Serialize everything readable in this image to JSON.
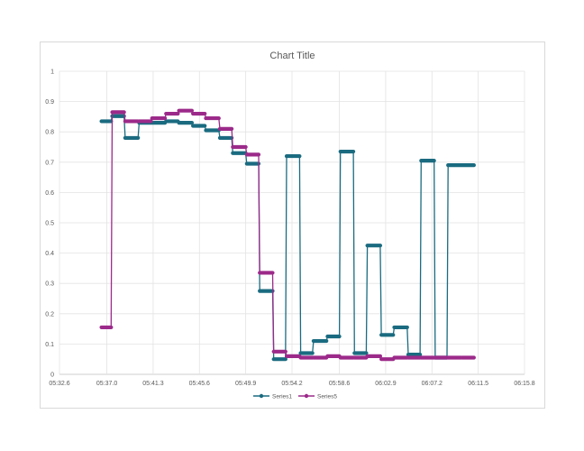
{
  "chart_data": {
    "type": "line",
    "title": "Chart Title",
    "xlabel": "",
    "ylabel": "",
    "x_unit": "mm:ss.s",
    "xlim": [
      "05:32.6",
      "06:15.8"
    ],
    "ylim": [
      0,
      1
    ],
    "x_ticks": [
      "05:32.6",
      "05:37.0",
      "05:41.3",
      "05:45.6",
      "05:49.9",
      "05:54.2",
      "05:58.6",
      "06:02.9",
      "06:07.2",
      "06:11.5",
      "06:15.8"
    ],
    "y_ticks": [
      "0",
      "0.1",
      "0.2",
      "0.3",
      "0.4",
      "0.5",
      "0.6",
      "0.7",
      "0.8",
      "0.9",
      "1"
    ],
    "grid": true,
    "legend": "bottom",
    "series": [
      {
        "name": "Series1",
        "color": "#1a6b80",
        "x": [
          "05:36.5",
          "05:37.4",
          "05:37.5",
          "05:38.6",
          "05:38.7",
          "05:39.9",
          "05:40.0",
          "05:41.1",
          "05:41.2",
          "05:42.4",
          "05:42.5",
          "05:43.6",
          "05:43.7",
          "05:44.9",
          "05:45.0",
          "05:46.1",
          "05:46.2",
          "05:47.4",
          "05:47.5",
          "05:48.6",
          "05:48.7",
          "05:49.9",
          "05:50.0",
          "05:51.1",
          "05:51.2",
          "05:52.4",
          "05:52.5",
          "05:53.6",
          "05:53.7",
          "05:54.9",
          "05:55.0",
          "05:56.1",
          "05:56.2",
          "05:57.4",
          "05:57.5",
          "05:58.6",
          "05:58.7",
          "05:59.9",
          "06:00.0",
          "06:01.1",
          "06:01.2",
          "06:02.4",
          "06:02.5",
          "06:03.6",
          "06:03.7",
          "06:04.9",
          "06:05.0",
          "06:06.1",
          "06:06.2",
          "06:07.4",
          "06:07.5",
          "06:08.6",
          "06:08.7",
          "06:09.9",
          "06:10.0",
          "06:11.1"
        ],
        "y": [
          0.835,
          0.835,
          0.852,
          0.852,
          0.78,
          0.78,
          0.83,
          0.83,
          0.83,
          0.83,
          0.835,
          0.835,
          0.83,
          0.83,
          0.82,
          0.82,
          0.805,
          0.805,
          0.78,
          0.78,
          0.73,
          0.73,
          0.695,
          0.695,
          0.275,
          0.275,
          0.05,
          0.05,
          0.72,
          0.72,
          0.07,
          0.07,
          0.11,
          0.11,
          0.125,
          0.125,
          0.735,
          0.735,
          0.07,
          0.07,
          0.425,
          0.425,
          0.13,
          0.13,
          0.155,
          0.155,
          0.065,
          0.065,
          0.705,
          0.705,
          0.055,
          0.055,
          0.69,
          0.69,
          0.69,
          0.69
        ]
      },
      {
        "name": "Series5",
        "color": "#9c2a8a",
        "x": [
          "05:36.5",
          "05:37.4",
          "05:37.5",
          "05:38.6",
          "05:38.7",
          "05:39.9",
          "05:40.0",
          "05:41.1",
          "05:41.2",
          "05:42.4",
          "05:42.5",
          "05:43.6",
          "05:43.7",
          "05:44.9",
          "05:45.0",
          "05:46.1",
          "05:46.2",
          "05:47.4",
          "05:47.5",
          "05:48.6",
          "05:48.7",
          "05:49.9",
          "05:50.0",
          "05:51.1",
          "05:51.2",
          "05:52.4",
          "05:52.5",
          "05:53.6",
          "05:53.7",
          "05:54.9",
          "05:55.0",
          "05:56.1",
          "05:56.2",
          "05:57.4",
          "05:57.5",
          "05:58.6",
          "05:58.7",
          "05:59.9",
          "06:00.0",
          "06:01.1",
          "06:01.2",
          "06:02.4",
          "06:02.5",
          "06:03.6",
          "06:03.7",
          "06:04.9",
          "06:05.0",
          "06:06.1",
          "06:06.2",
          "06:07.4",
          "06:07.5",
          "06:08.6",
          "06:08.7",
          "06:09.9",
          "06:10.0",
          "06:11.1"
        ],
        "y": [
          0.155,
          0.155,
          0.865,
          0.865,
          0.835,
          0.835,
          0.835,
          0.835,
          0.845,
          0.845,
          0.86,
          0.86,
          0.87,
          0.87,
          0.86,
          0.86,
          0.845,
          0.845,
          0.81,
          0.81,
          0.75,
          0.75,
          0.725,
          0.725,
          0.335,
          0.335,
          0.075,
          0.075,
          0.06,
          0.06,
          0.055,
          0.055,
          0.055,
          0.055,
          0.06,
          0.06,
          0.055,
          0.055,
          0.055,
          0.055,
          0.06,
          0.06,
          0.05,
          0.05,
          0.055,
          0.055,
          0.055,
          0.055,
          0.055,
          0.055,
          0.055,
          0.055,
          0.055,
          0.055,
          0.055,
          0.055
        ]
      }
    ]
  }
}
